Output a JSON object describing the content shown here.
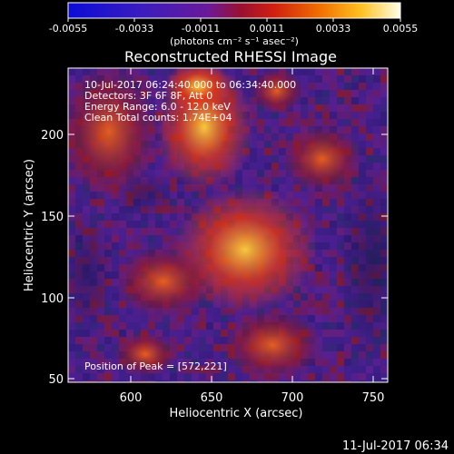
{
  "colorbar": {
    "ticks": [
      "-0.0055",
      "-0.0033",
      "-0.0011",
      "0.0011",
      "0.0033",
      "0.0055"
    ],
    "unit_label": "(photons cm⁻² s⁻¹ asec⁻²)"
  },
  "image": {
    "title": "Reconstructed RHESSI Image",
    "info_lines": [
      "10-Jul-2017 06:24:40.000 to 06:34:40.000",
      "Detectors: 3F 6F 8F, Att 0",
      "Energy Range: 6.0 - 12.0 keV",
      "Clean    Total counts: 1.74E+04"
    ],
    "peak_label": "Position of Peak = [572,221]"
  },
  "axes": {
    "xlabel": "Heliocentric X (arcsec)",
    "ylabel": "Heliocentric Y (arcsec)",
    "xticks": [
      "600",
      "650",
      "700",
      "750"
    ],
    "yticks": [
      "50",
      "100",
      "150",
      "200"
    ],
    "xrange": [
      563,
      755
    ],
    "yrange": [
      47,
      245
    ]
  },
  "footer": {
    "timestamp": "11-Jul-2017 06:34"
  },
  "colors": {
    "background": "#000000",
    "foreground": "#ffffff"
  }
}
